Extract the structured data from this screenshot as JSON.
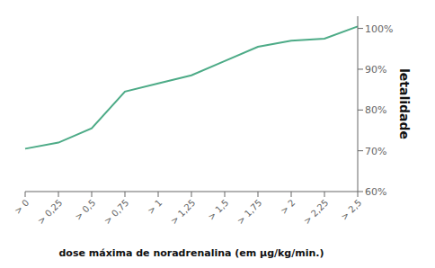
{
  "chart_data": {
    "type": "line",
    "categories": [
      "> 0",
      "> 0,25",
      "> 0,5",
      "> 0,75",
      "> 1",
      "> 1,25",
      "> 1,5",
      "> 1,75",
      "> 2",
      "> 2,25",
      "> 2,5"
    ],
    "values": [
      70.5,
      72.0,
      75.5,
      84.5,
      86.5,
      88.5,
      92.0,
      95.5,
      97.0,
      97.5,
      100.5
    ],
    "color": "#4dab87",
    "xlabel": "dose máxima de noradrenalina (em μg/kg/min.)",
    "ylabel": "letalidade",
    "ylim": [
      60,
      103
    ],
    "yticks": [
      {
        "value": 60,
        "label": "60%"
      },
      {
        "value": 70,
        "label": "70%"
      },
      {
        "value": 80,
        "label": "80%"
      },
      {
        "value": 90,
        "label": "90%"
      },
      {
        "value": 100,
        "label": "100%"
      }
    ],
    "grid": false
  }
}
